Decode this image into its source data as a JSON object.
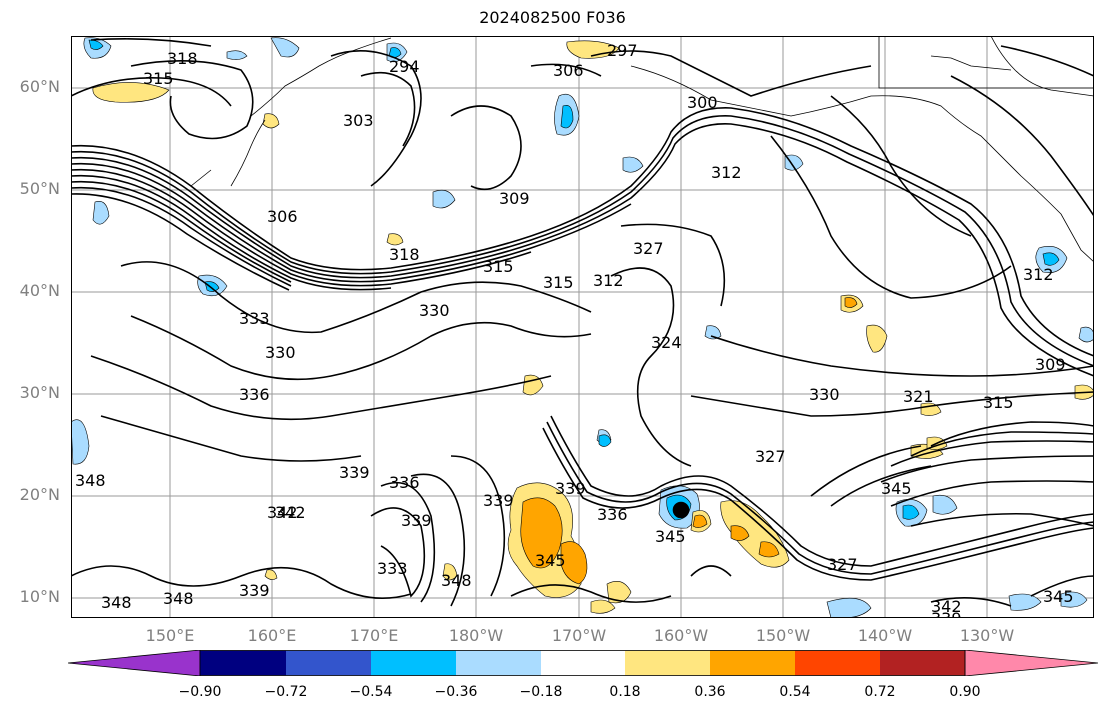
{
  "title": "2024082500 F036",
  "lat_labels": [
    "60°N",
    "50°N",
    "40°N",
    "30°N",
    "20°N",
    "10°N"
  ],
  "lon_labels": [
    "150°E",
    "160°E",
    "170°E",
    "180°W",
    "170°W",
    "160°W",
    "150°W",
    "140°W",
    "130°W"
  ],
  "contour_labels": [
    "318",
    "315",
    "294",
    "297",
    "306",
    "303",
    "300",
    "309",
    "306",
    "312",
    "318",
    "315",
    "312",
    "327",
    "312",
    "315",
    "333",
    "330",
    "330",
    "324",
    "336",
    "330",
    "321",
    "315",
    "309",
    "348",
    "339",
    "342",
    "336",
    "339",
    "339",
    "336",
    "345",
    "327",
    "345",
    "342",
    "339",
    "333",
    "348",
    "345",
    "327",
    "348",
    "348",
    "339",
    "342",
    "339",
    "345"
  ],
  "colorbar": {
    "ticks": [
      "−0.90",
      "−0.72",
      "−0.54",
      "−0.36",
      "−0.18",
      "0.18",
      "0.36",
      "0.54",
      "0.72",
      "0.90"
    ],
    "colors": [
      "#9933cc",
      "#000080",
      "#3355cc",
      "#00bfff",
      "#aadcff",
      "#ffffff",
      "#ffe680",
      "#ffa500",
      "#ff4500",
      "#b22222",
      "#ff88aa"
    ]
  }
}
